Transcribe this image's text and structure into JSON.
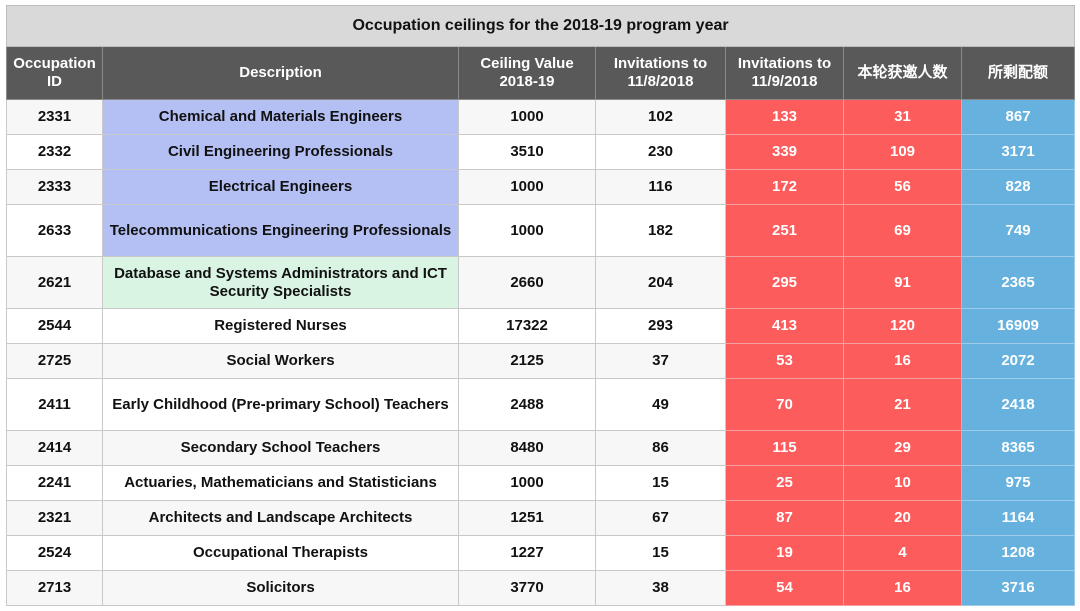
{
  "title": "Occupation ceilings for the 2018-19 program year",
  "colors": {
    "header_bg": "#595959",
    "title_bg": "#d9d9d9",
    "red": "#fc5c5c",
    "blue": "#66b1de",
    "highlight_blue": "#b4c0f4",
    "highlight_green": "#d9f4e3"
  },
  "headers": {
    "id": "Occupation ID",
    "description": "Description",
    "ceiling": "Ceiling Value 2018-19",
    "inv_1108": "Invitations to 11/8/2018",
    "inv_1109": "Invitations to 11/9/2018",
    "this_round": "本轮获邀人数",
    "remaining": "所剩配额"
  },
  "rows": [
    {
      "id": "2331",
      "description": "Chemical and Materials Engineers",
      "ceiling": "1000",
      "inv_1108": "102",
      "inv_1109": "133",
      "this_round": "31",
      "remaining": "867"
    },
    {
      "id": "2332",
      "description": "Civil Engineering Professionals",
      "ceiling": "3510",
      "inv_1108": "230",
      "inv_1109": "339",
      "this_round": "109",
      "remaining": "3171"
    },
    {
      "id": "2333",
      "description": "Electrical Engineers",
      "ceiling": "1000",
      "inv_1108": "116",
      "inv_1109": "172",
      "this_round": "56",
      "remaining": "828"
    },
    {
      "id": "2633",
      "description": "Telecommunications Engineering Professionals",
      "ceiling": "1000",
      "inv_1108": "182",
      "inv_1109": "251",
      "this_round": "69",
      "remaining": "749"
    },
    {
      "id": "2621",
      "description": "Database and Systems Administrators and ICT Security Specialists",
      "ceiling": "2660",
      "inv_1108": "204",
      "inv_1109": "295",
      "this_round": "91",
      "remaining": "2365"
    },
    {
      "id": "2544",
      "description": "Registered Nurses",
      "ceiling": "17322",
      "inv_1108": "293",
      "inv_1109": "413",
      "this_round": "120",
      "remaining": "16909"
    },
    {
      "id": "2725",
      "description": "Social Workers",
      "ceiling": "2125",
      "inv_1108": "37",
      "inv_1109": "53",
      "this_round": "16",
      "remaining": "2072"
    },
    {
      "id": "2411",
      "description": "Early Childhood (Pre-primary School) Teachers",
      "ceiling": "2488",
      "inv_1108": "49",
      "inv_1109": "70",
      "this_round": "21",
      "remaining": "2418"
    },
    {
      "id": "2414",
      "description": "Secondary School Teachers",
      "ceiling": "8480",
      "inv_1108": "86",
      "inv_1109": "115",
      "this_round": "29",
      "remaining": "8365"
    },
    {
      "id": "2241",
      "description": "Actuaries, Mathematicians and Statisticians",
      "ceiling": "1000",
      "inv_1108": "15",
      "inv_1109": "25",
      "this_round": "10",
      "remaining": "975"
    },
    {
      "id": "2321",
      "description": "Architects and Landscape Architects",
      "ceiling": "1251",
      "inv_1108": "67",
      "inv_1109": "87",
      "this_round": "20",
      "remaining": "1164"
    },
    {
      "id": "2524",
      "description": "Occupational Therapists",
      "ceiling": "1227",
      "inv_1108": "15",
      "inv_1109": "19",
      "this_round": "4",
      "remaining": "1208"
    },
    {
      "id": "2713",
      "description": "Solicitors",
      "ceiling": "3770",
      "inv_1108": "38",
      "inv_1109": "54",
      "this_round": "16",
      "remaining": "3716"
    }
  ]
}
